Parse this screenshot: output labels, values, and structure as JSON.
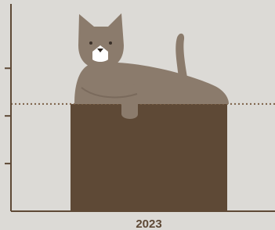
{
  "chart_data": {
    "type": "bar",
    "categories": [
      "2023"
    ],
    "values": [
      2.25
    ],
    "color": "#5e4936",
    "ylim": [
      0,
      4.35
    ],
    "yticks": [
      1,
      2,
      3
    ],
    "reference_line": 2.25,
    "reference_color": "#7a5f45"
  }
}
